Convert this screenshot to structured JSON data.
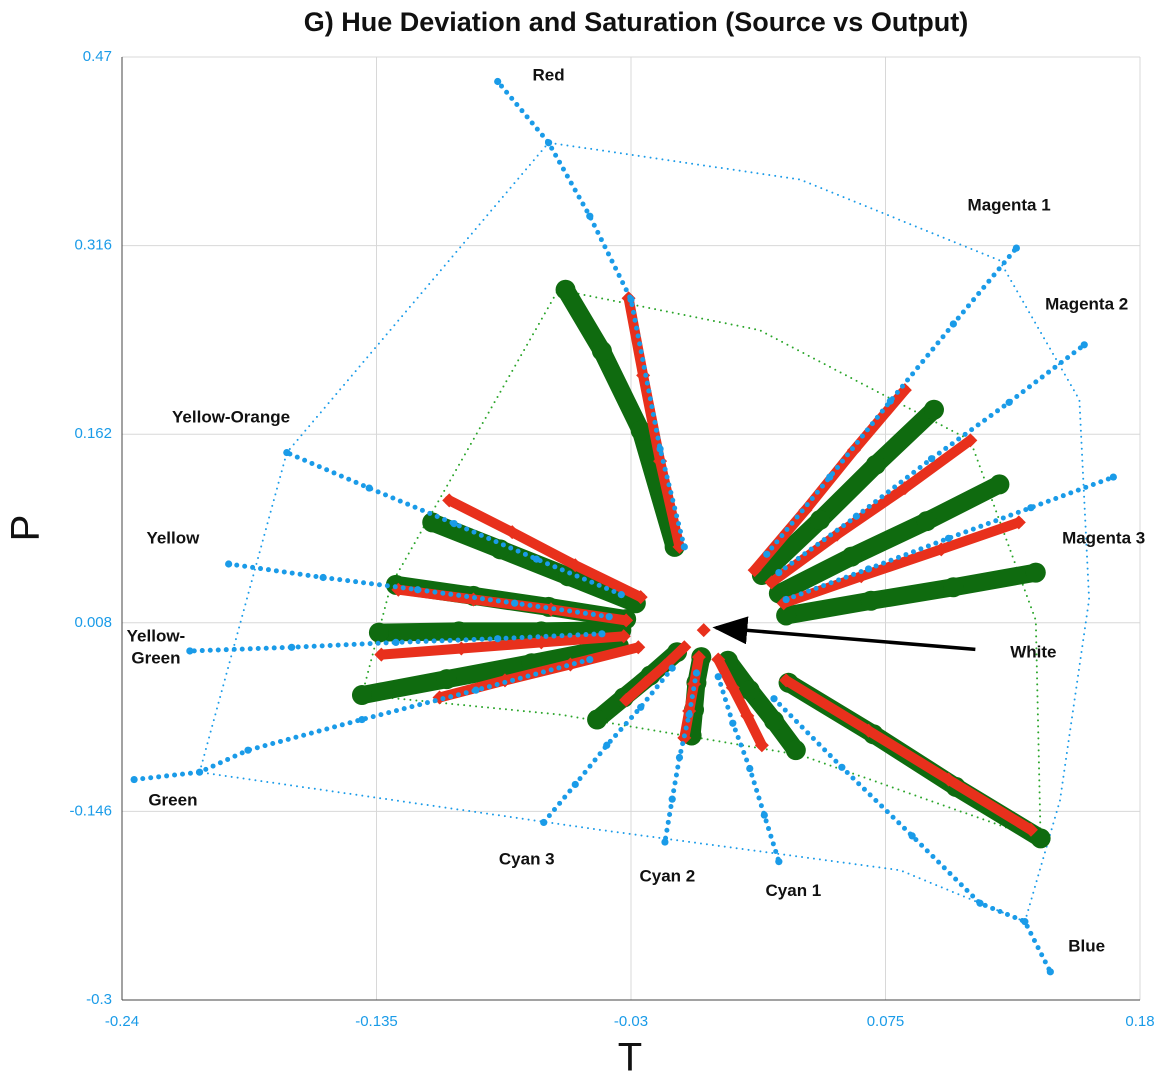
{
  "chart_data": {
    "type": "scatter",
    "title": "G) Hue Deviation and Saturation (Source vs Output)",
    "xlabel": "T",
    "ylabel": "P",
    "xlim": [
      -0.24,
      0.18
    ],
    "ylim": [
      -0.3,
      0.47
    ],
    "xticks": [
      -0.24,
      -0.135,
      -0.03,
      0.075,
      0.18
    ],
    "yticks": [
      -0.3,
      -0.146,
      0.008,
      0.162,
      0.316,
      0.47
    ],
    "grid": true,
    "series": [
      {
        "color": "#1a9be8",
        "marker": "dotted-line",
        "x": [
          -0.208,
          -0.172,
          -0.064,
          0.0397,
          0.122,
          0.155,
          0.159,
          0.147,
          0.1325,
          0.081,
          -0.043,
          -0.208
        ],
        "y": [
          -0.114,
          0.147,
          0.4,
          0.37,
          0.304,
          0.19,
          0.027,
          -0.137,
          -0.236,
          -0.194,
          -0.161,
          -0.114
        ]
      },
      {
        "color": "#2aa52a",
        "marker": "dotted-line",
        "x": [
          -0.141,
          -0.129,
          -0.06,
          0.023,
          0.11,
          0.137,
          0.139,
          0.04,
          -0.059,
          -0.141
        ],
        "y": [
          -0.051,
          0.039,
          0.28,
          0.247,
          0.157,
          0.01,
          -0.169,
          -0.1,
          -0.067,
          -0.051
        ]
      },
      {
        "color": "#0f6b0f",
        "marker": "circle",
        "x": [
          -0.012,
          -0.026,
          -0.042,
          -0.057
        ],
        "y": [
          0.07,
          0.165,
          0.23,
          0.28
        ]
      },
      {
        "color": "#0f6b0f",
        "marker": "circle",
        "x": [
          0.024,
          0.048,
          0.071,
          0.095
        ],
        "y": [
          0.047,
          0.092,
          0.137,
          0.182
        ]
      },
      {
        "color": "#0f6b0f",
        "marker": "circle",
        "x": [
          0.031,
          0.061,
          0.092,
          0.122
        ],
        "y": [
          0.032,
          0.062,
          0.091,
          0.121
        ]
      },
      {
        "color": "#0f6b0f",
        "marker": "circle",
        "x": [
          0.034,
          0.069,
          0.103,
          0.137
        ],
        "y": [
          0.014,
          0.026,
          0.037,
          0.049
        ]
      },
      {
        "color": "#0f6b0f",
        "marker": "circle",
        "x": [
          0.035,
          0.07,
          0.104,
          0.139
        ],
        "y": [
          -0.041,
          -0.083,
          -0.126,
          -0.168
        ]
      },
      {
        "color": "#0f6b0f",
        "marker": "circle",
        "x": [
          0.01,
          0.019,
          0.029,
          0.038
        ],
        "y": [
          -0.023,
          -0.047,
          -0.072,
          -0.096
        ]
      },
      {
        "color": "#0f6b0f",
        "marker": "circle",
        "x": [
          -0.001,
          -0.003,
          -0.004,
          -0.005
        ],
        "y": [
          -0.02,
          -0.041,
          -0.063,
          -0.084
        ]
      },
      {
        "color": "#0f6b0f",
        "marker": "circle",
        "x": [
          -0.011,
          -0.022,
          -0.033,
          -0.044
        ],
        "y": [
          -0.016,
          -0.035,
          -0.053,
          -0.071
        ]
      },
      {
        "color": "#0f6b0f",
        "marker": "circle",
        "x": [
          -0.035,
          -0.071,
          -0.106,
          -0.141
        ],
        "y": [
          -0.011,
          -0.025,
          -0.038,
          -0.051
        ]
      },
      {
        "color": "#0f6b0f",
        "marker": "circle",
        "x": [
          -0.034,
          -0.067,
          -0.101,
          -0.134
        ],
        "y": [
          0.002,
          0.001,
          0.001,
          0.0
        ]
      },
      {
        "color": "#0f6b0f",
        "marker": "circle",
        "x": [
          -0.032,
          -0.064,
          -0.095,
          -0.127
        ],
        "y": [
          0.011,
          0.021,
          0.03,
          0.039
        ]
      },
      {
        "color": "#0f6b0f",
        "marker": "circle",
        "x": [
          -0.028,
          -0.056,
          -0.084,
          -0.112
        ],
        "y": [
          0.024,
          0.046,
          0.068,
          0.09
        ]
      },
      {
        "color": "#e8301c",
        "marker": "diamond",
        "x": [
          -0.01,
          -0.018,
          -0.025,
          -0.031
        ],
        "y": [
          0.07,
          0.14,
          0.21,
          0.273
        ]
      },
      {
        "color": "#e8301c",
        "marker": "diamond",
        "x": [
          0.021,
          0.042,
          0.062,
          0.083
        ],
        "y": [
          0.051,
          0.1,
          0.149,
          0.198
        ]
      },
      {
        "color": "#e8301c",
        "marker": "diamond",
        "x": [
          0.028,
          0.055,
          0.083,
          0.11
        ],
        "y": [
          0.041,
          0.08,
          0.118,
          0.157
        ]
      },
      {
        "color": "#e8301c",
        "marker": "diamond",
        "x": [
          0.033,
          0.065,
          0.098,
          0.13
        ],
        "y": [
          0.024,
          0.046,
          0.068,
          0.09
        ]
      },
      {
        "color": "#e8301c",
        "marker": "diamond",
        "x": [
          0.034,
          0.068,
          0.101,
          0.135
        ],
        "y": [
          -0.039,
          -0.08,
          -0.12,
          -0.161
        ]
      },
      {
        "color": "#e8301c",
        "marker": "diamond",
        "x": [
          0.006,
          0.012,
          0.018,
          0.024
        ],
        "y": [
          -0.022,
          -0.045,
          -0.068,
          -0.092
        ]
      },
      {
        "color": "#e8301c",
        "marker": "diamond",
        "x": [
          -0.002,
          -0.004,
          -0.006,
          -0.008
        ],
        "y": [
          -0.02,
          -0.042,
          -0.064,
          -0.086
        ]
      },
      {
        "color": "#e8301c",
        "marker": "diamond",
        "x": [
          -0.008,
          -0.016,
          -0.024,
          -0.032
        ],
        "y": [
          -0.012,
          -0.027,
          -0.041,
          -0.055
        ]
      },
      {
        "color": "#e8301c",
        "marker": "diamond",
        "x": [
          -0.027,
          -0.055,
          -0.082,
          -0.109
        ],
        "y": [
          -0.012,
          -0.026,
          -0.039,
          -0.053
        ]
      },
      {
        "color": "#e8301c",
        "marker": "diamond",
        "x": [
          -0.033,
          -0.067,
          -0.1,
          -0.133
        ],
        "y": [
          -0.003,
          -0.008,
          -0.013,
          -0.018
        ]
      },
      {
        "color": "#e8301c",
        "marker": "diamond",
        "x": [
          -0.032,
          -0.063,
          -0.095,
          -0.126
        ],
        "y": [
          0.01,
          0.019,
          0.027,
          0.035
        ]
      },
      {
        "color": "#e8301c",
        "marker": "diamond",
        "x": [
          -0.026,
          -0.053,
          -0.079,
          -0.105
        ],
        "y": [
          0.029,
          0.055,
          0.082,
          0.108
        ]
      },
      {
        "color": "#1a9be8",
        "marker": "dot",
        "x": [
          -0.008,
          -0.018,
          -0.03,
          -0.047,
          -0.064,
          -0.085
        ],
        "y": [
          0.07,
          0.15,
          0.272,
          0.34,
          0.4,
          0.45
        ]
      },
      {
        "color": "#1a9be8",
        "marker": "dot",
        "x": [
          0.026,
          0.052,
          0.077,
          0.103,
          0.129
        ],
        "y": [
          0.064,
          0.127,
          0.189,
          0.252,
          0.314
        ]
      },
      {
        "color": "#1a9be8",
        "marker": "dot",
        "x": [
          0.031,
          0.063,
          0.094,
          0.126,
          0.157
        ],
        "y": [
          0.049,
          0.095,
          0.142,
          0.188,
          0.235
        ]
      },
      {
        "color": "#1a9be8",
        "marker": "dot",
        "x": [
          0.034,
          0.068,
          0.101,
          0.135,
          0.169
        ],
        "y": [
          0.027,
          0.052,
          0.077,
          0.102,
          0.127
        ]
      },
      {
        "color": "#1a9be8",
        "marker": "dot",
        "x": [
          0.029,
          0.057,
          0.086,
          0.114,
          0.1325,
          0.143
        ],
        "y": [
          -0.054,
          -0.11,
          -0.166,
          -0.221,
          -0.236,
          -0.277
        ]
      },
      {
        "color": "#1a9be8",
        "marker": "dot",
        "x": [
          0.006,
          0.012,
          0.019,
          0.025,
          0.031
        ],
        "y": [
          -0.036,
          -0.074,
          -0.111,
          -0.149,
          -0.187
        ]
      },
      {
        "color": "#1a9be8",
        "marker": "dot",
        "x": [
          -0.003,
          -0.006,
          -0.01,
          -0.013,
          -0.016
        ],
        "y": [
          -0.033,
          -0.067,
          -0.102,
          -0.136,
          -0.171
        ]
      },
      {
        "color": "#1a9be8",
        "marker": "dot",
        "x": [
          -0.013,
          -0.026,
          -0.04,
          -0.053,
          -0.066
        ],
        "y": [
          -0.029,
          -0.061,
          -0.092,
          -0.124,
          -0.155
        ]
      },
      {
        "color": "#1a9be8",
        "marker": "dot",
        "x": [
          -0.047,
          -0.094,
          -0.141,
          -0.188,
          -0.208,
          -0.235
        ],
        "y": [
          -0.022,
          -0.047,
          -0.071,
          -0.096,
          -0.114,
          -0.12
        ]
      },
      {
        "color": "#1a9be8",
        "marker": "dot",
        "x": [
          -0.042,
          -0.085,
          -0.127,
          -0.17,
          -0.212
        ],
        "y": [
          -0.001,
          -0.005,
          -0.008,
          -0.012,
          -0.015
        ]
      },
      {
        "color": "#1a9be8",
        "marker": "dot",
        "x": [
          -0.039,
          -0.078,
          -0.118,
          -0.157,
          -0.196
        ],
        "y": [
          0.013,
          0.024,
          0.035,
          0.045,
          0.056
        ]
      },
      {
        "color": "#1a9be8",
        "marker": "dot",
        "x": [
          -0.034,
          -0.069,
          -0.103,
          -0.138,
          -0.172
        ],
        "y": [
          0.031,
          0.06,
          0.089,
          0.118,
          0.147
        ]
      },
      {
        "color": "#e8301c",
        "marker": "diamond",
        "x": [
          0.0
        ],
        "y": [
          0.002
        ]
      }
    ],
    "annotations": [
      {
        "text": "Red",
        "x": -0.064,
        "y": 0.454
      },
      {
        "text": "Magenta 1",
        "x": 0.126,
        "y": 0.348
      },
      {
        "text": "Magenta 2",
        "x": 0.158,
        "y": 0.267
      },
      {
        "text": "Magenta 3",
        "x": 0.165,
        "y": 0.076
      },
      {
        "text": "Yellow-Orange",
        "x": -0.195,
        "y": 0.175
      },
      {
        "text": "Yellow",
        "x": -0.219,
        "y": 0.076
      },
      {
        "text": "Yellow-\nGreen",
        "x": -0.226,
        "y": -0.013
      },
      {
        "text": "Green",
        "x": -0.219,
        "y": -0.138
      },
      {
        "text": "Cyan 3",
        "x": -0.073,
        "y": -0.186
      },
      {
        "text": "Cyan 2",
        "x": -0.015,
        "y": -0.2
      },
      {
        "text": "Cyan 1",
        "x": 0.037,
        "y": -0.212
      },
      {
        "text": "Blue",
        "x": 0.158,
        "y": -0.257
      },
      {
        "text": "White",
        "x": 0.136,
        "y": -0.017,
        "arrow_to": [
          0.005,
          0.004
        ]
      }
    ]
  }
}
